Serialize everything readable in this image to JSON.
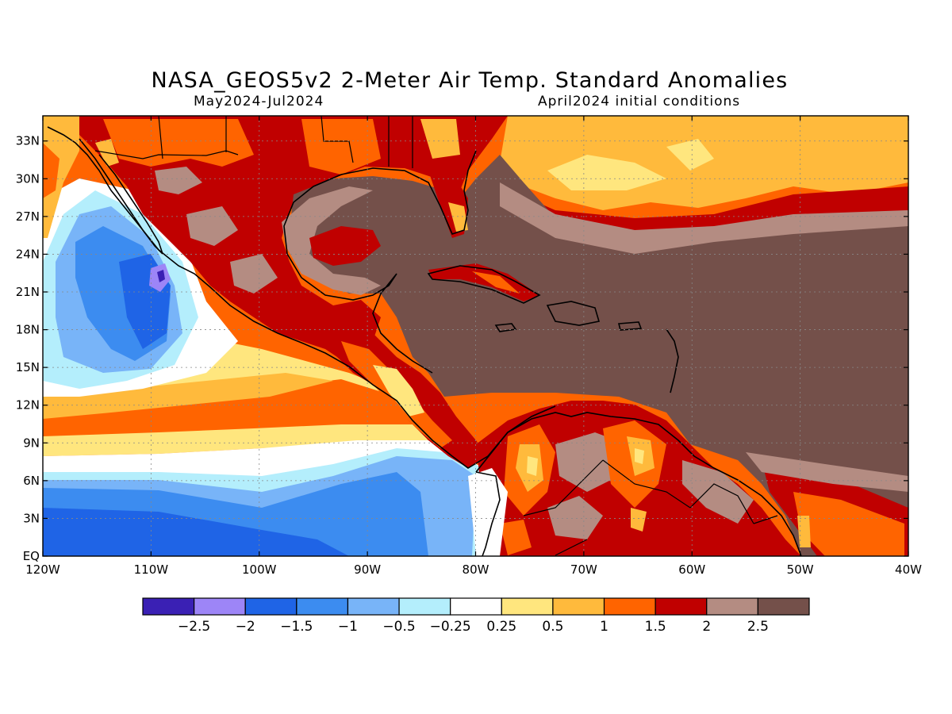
{
  "title": "NASA_GEOS5v2 2-Meter Air Temp. Standard Anomalies",
  "subtitle_left": "May2024-Jul2024",
  "subtitle_right": "April2024 initial conditions",
  "lat_ticks": [
    {
      "value": 33,
      "label": "33N"
    },
    {
      "value": 30,
      "label": "30N"
    },
    {
      "value": 27,
      "label": "27N"
    },
    {
      "value": 24,
      "label": "24N"
    },
    {
      "value": 21,
      "label": "21N"
    },
    {
      "value": 18,
      "label": "18N"
    },
    {
      "value": 15,
      "label": "15N"
    },
    {
      "value": 12,
      "label": "12N"
    },
    {
      "value": 9,
      "label": "9N"
    },
    {
      "value": 6,
      "label": "6N"
    },
    {
      "value": 3,
      "label": "3N"
    },
    {
      "value": 0,
      "label": "EQ"
    }
  ],
  "lon_ticks": [
    {
      "value": -120,
      "label": "120W"
    },
    {
      "value": -110,
      "label": "110W"
    },
    {
      "value": -100,
      "label": "100W"
    },
    {
      "value": -90,
      "label": "90W"
    },
    {
      "value": -80,
      "label": "80W"
    },
    {
      "value": -70,
      "label": "70W"
    },
    {
      "value": -60,
      "label": "60W"
    },
    {
      "value": -50,
      "label": "50W"
    },
    {
      "value": -40,
      "label": "40W"
    }
  ],
  "extent": {
    "lon": [
      -120,
      -40
    ],
    "lat": [
      0,
      35
    ]
  },
  "colorbar": {
    "colors": [
      "#3a20b4",
      "#9d85f7",
      "#1f64e6",
      "#3c8cf0",
      "#78b4f8",
      "#b4eefc",
      "#ffffff",
      "#ffe67e",
      "#ffba3c",
      "#ff6400",
      "#c00000",
      "#b48c82",
      "#74504a"
    ],
    "labels": [
      "-2.5",
      "-2",
      "-1.5",
      "-1",
      "-0.5",
      "-0.25",
      "0.25",
      "0.5",
      "1",
      "1.5",
      "2",
      "2.5"
    ]
  },
  "colors": {
    "land_base": "#c00000",
    "ocean_warm": "#ff6400",
    "coastline": "#000000"
  }
}
